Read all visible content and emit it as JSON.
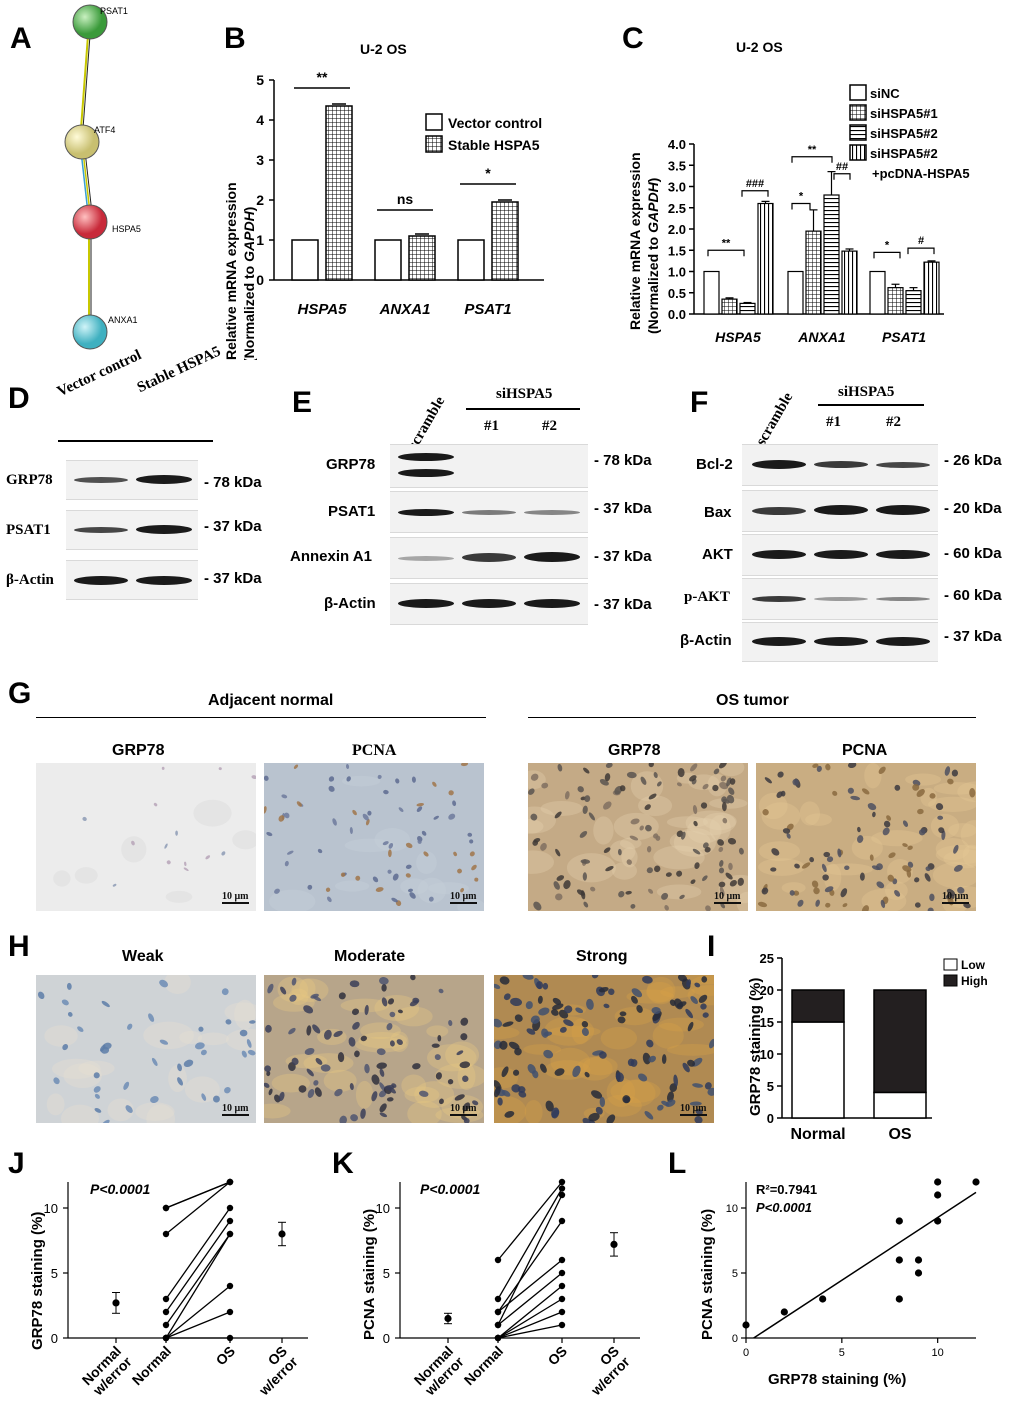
{
  "panels": {
    "A": "A",
    "B": "B",
    "C": "C",
    "D": "D",
    "E": "E",
    "F": "F",
    "G": "G",
    "H": "H",
    "I": "I",
    "J": "J",
    "K": "K",
    "L": "L"
  },
  "panelA": {
    "nodes": [
      "PSAT1",
      "ATF4",
      "HSPA5",
      "ANXA1"
    ]
  },
  "panelB": {
    "title": "U-2 OS",
    "ylabel_1": "Relative mRNA expression",
    "ylabel_2a": "(Normalized to ",
    "ylabel_2b": "GAPDH",
    "ylabel_2c": ")",
    "legend": [
      "Vector control",
      "Stable HSPA5"
    ],
    "sig": [
      "**",
      "ns",
      "*"
    ]
  },
  "panelC": {
    "title": "U-2 OS",
    "ylabel_1": "Relative mRNA expression",
    "ylabel_2a": "(Normalized to ",
    "ylabel_2b": "GAPDH",
    "ylabel_2c": ")",
    "legend": [
      "siNC",
      "siHSPA5#1",
      "siHSPA5#2",
      "siHSPA5#2",
      "+pcDNA-HSPA5"
    ],
    "sig": [
      "**",
      "###",
      "*",
      "**",
      "##",
      "*",
      "#"
    ]
  },
  "panelD": {
    "lanes": [
      "Vector control",
      "Stable HSPA5"
    ],
    "rows": [
      "GRP78",
      "PSAT1",
      "β-Actin"
    ],
    "kda": [
      "- 78 kDa",
      "- 37 kDa",
      "- 37 kDa"
    ]
  },
  "panelE": {
    "lanes": [
      "scramble",
      "siHSPA5",
      "#1",
      "#2"
    ],
    "rows": [
      "GRP78",
      "PSAT1",
      "Annexin A1",
      "β-Actin"
    ],
    "kda": [
      "- 78 kDa",
      "- 37 kDa",
      "- 37 kDa",
      "- 37 kDa"
    ]
  },
  "panelF": {
    "lanes": [
      "scramble",
      "siHSPA5",
      "#1",
      "#2"
    ],
    "rows": [
      "Bcl-2",
      "Bax",
      "AKT",
      "p-AKT",
      "β-Actin"
    ],
    "kda": [
      "- 26 kDa",
      "- 20 kDa",
      "- 60 kDa",
      "- 60 kDa",
      "- 37 kDa"
    ]
  },
  "panelG": {
    "group_left": "Adjacent normal",
    "group_right": "OS tumor",
    "labels": [
      "GRP78",
      "PCNA",
      "GRP78",
      "PCNA"
    ],
    "scale": "10 μm"
  },
  "panelH": {
    "labels": [
      "Weak",
      "Moderate",
      "Strong"
    ],
    "scale": "10 μm"
  },
  "panelI": {
    "ylabel": "GRP78 staining (%)",
    "legend": [
      "Low",
      "High"
    ]
  },
  "panelJ": {
    "ylabel": "GRP78 staining (%)",
    "stat": "P<0.0001"
  },
  "panelK": {
    "ylabel": "PCNA staining (%)",
    "stat": "P<0.0001"
  },
  "panelL": {
    "ylabel": "PCNA staining (%)",
    "xlabel": "GRP78 staining (%)",
    "stat1": "R²=0.7941",
    "stat2": "P<0.0001"
  },
  "chart_data": [
    {
      "type": "bar",
      "panel": "B",
      "categories": [
        "HSPA5",
        "ANXA1",
        "PSAT1"
      ],
      "series": [
        {
          "name": "Vector control",
          "values": [
            1.0,
            1.0,
            1.0
          ]
        },
        {
          "name": "Stable HSPA5",
          "values": [
            4.35,
            1.1,
            1.95
          ]
        }
      ],
      "ylim": [
        0,
        5
      ],
      "yticks": [
        0,
        1,
        2,
        3,
        4,
        5
      ]
    },
    {
      "type": "bar",
      "panel": "C",
      "categories": [
        "HSPA5",
        "ANXA1",
        "PSAT1"
      ],
      "series": [
        {
          "name": "siNC",
          "values": [
            1.0,
            1.0,
            1.0
          ]
        },
        {
          "name": "siHSPA5#1",
          "values": [
            0.35,
            1.95,
            0.62
          ]
        },
        {
          "name": "siHSPA5#2",
          "values": [
            0.25,
            2.8,
            0.55
          ]
        },
        {
          "name": "siHSPA5#2 +pcDNA-HSPA5",
          "values": [
            2.6,
            1.48,
            1.22
          ]
        }
      ],
      "errors": [
        [
          0,
          0,
          0
        ],
        [
          0.03,
          0.5,
          0.08
        ],
        [
          0.02,
          0.55,
          0.07
        ],
        [
          0.05,
          0.05,
          0.03
        ]
      ],
      "ylim": [
        0,
        4.0
      ],
      "yticks": [
        0.0,
        0.5,
        1.0,
        1.5,
        2.0,
        2.5,
        3.0,
        3.5,
        4.0
      ]
    },
    {
      "type": "bar",
      "panel": "I",
      "categories": [
        "Normal",
        "OS"
      ],
      "series": [
        {
          "name": "Low",
          "values": [
            15,
            4
          ]
        },
        {
          "name": "High",
          "values": [
            5,
            16
          ]
        }
      ],
      "ylim": [
        0,
        25
      ],
      "yticks": [
        0,
        5,
        10,
        15,
        20,
        25
      ]
    },
    {
      "type": "scatter",
      "panel": "J",
      "categories": [
        "Normal w/error",
        "Normal",
        "OS",
        "OS w/error"
      ],
      "pairs": [
        [
          10,
          12
        ],
        [
          8,
          12
        ],
        [
          3,
          10
        ],
        [
          2,
          9
        ],
        [
          1,
          8
        ],
        [
          0,
          8
        ],
        [
          0,
          4
        ],
        [
          0,
          2
        ],
        [
          0,
          0
        ],
        [
          10,
          12
        ]
      ],
      "mean_normal": 2.7,
      "err_normal": 0.8,
      "mean_os": 8.0,
      "err_os": 0.9,
      "ylim": [
        0,
        12
      ],
      "yticks": [
        0,
        5,
        10
      ]
    },
    {
      "type": "scatter",
      "panel": "K",
      "categories": [
        "Normal w/error",
        "Normal",
        "OS",
        "OS w/error"
      ],
      "pairs": [
        [
          6,
          12
        ],
        [
          3,
          11.5
        ],
        [
          2,
          9
        ],
        [
          2,
          6
        ],
        [
          1,
          5
        ],
        [
          0,
          4
        ],
        [
          0,
          3
        ],
        [
          0,
          2
        ],
        [
          0,
          1
        ],
        [
          1,
          11
        ]
      ],
      "mean_normal": 1.5,
      "err_normal": 0.4,
      "mean_os": 7.2,
      "err_os": 0.9,
      "ylim": [
        0,
        12
      ],
      "yticks": [
        0,
        5,
        10
      ]
    },
    {
      "type": "scatter",
      "panel": "L",
      "points": [
        [
          0,
          1
        ],
        [
          2,
          2
        ],
        [
          4,
          3
        ],
        [
          8,
          3
        ],
        [
          8,
          6
        ],
        [
          8,
          9
        ],
        [
          9,
          5
        ],
        [
          9,
          6
        ],
        [
          10,
          9
        ],
        [
          10,
          11
        ],
        [
          10,
          12
        ],
        [
          12,
          12
        ]
      ],
      "fit": {
        "x": [
          0.4,
          12
        ],
        "y": [
          0,
          11.2
        ]
      },
      "xlim": [
        0,
        12
      ],
      "ylim": [
        0,
        12
      ],
      "xticks": [
        0,
        5,
        10
      ],
      "yticks": [
        0,
        5,
        10
      ]
    }
  ]
}
